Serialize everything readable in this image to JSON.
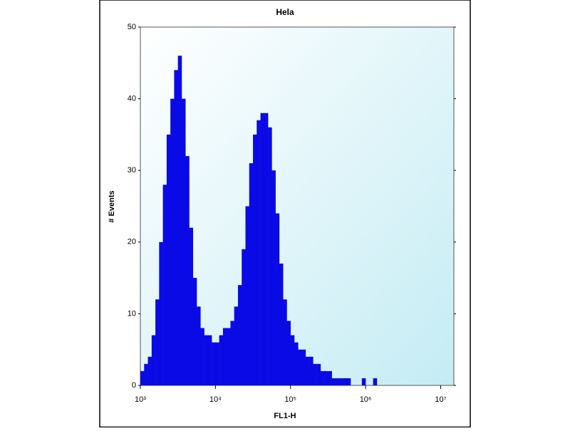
{
  "chart_data": {
    "type": "histogram",
    "title": "Hela",
    "x_label": "FL1-H",
    "y_label": "# Events",
    "log_x": true,
    "color": "#0a0ae6",
    "bins": [
      1000,
      1122,
      1259,
      1413,
      1585,
      1778,
      1995,
      2239,
      2512,
      2818,
      3162,
      3548,
      3981,
      4467,
      5012,
      5623,
      6310,
      7079,
      7943,
      8913,
      10000,
      11220,
      12590,
      14130,
      15850,
      17780,
      19950,
      22390,
      25120,
      28180,
      31620,
      35480,
      39810,
      44670,
      50120,
      56230,
      63100,
      70790,
      79430,
      89130,
      100000,
      112200,
      125900,
      141300,
      158500,
      177800,
      199500,
      223900,
      251200,
      281800,
      316200,
      354800,
      398100,
      446700,
      501200,
      562300,
      631000,
      707900,
      794300,
      891300,
      1000000,
      1122000,
      1259000,
      1413000,
      1585000,
      1778000,
      1995000
    ],
    "values": [
      2,
      3,
      4,
      7,
      12,
      20,
      28,
      35,
      40,
      44,
      46,
      40,
      32,
      22,
      15,
      11,
      8,
      7,
      7,
      6,
      6,
      7,
      8,
      8,
      9,
      11,
      14,
      19,
      25,
      31,
      35,
      37,
      38,
      38,
      36,
      30,
      24,
      17,
      12,
      9,
      7,
      6,
      5,
      5,
      4,
      4,
      3,
      3,
      2,
      2,
      2,
      1,
      1,
      1,
      1,
      1,
      0,
      0,
      0,
      1,
      0,
      0,
      1,
      0,
      0,
      0
    ],
    "xlim": [
      1000,
      15000000
    ],
    "xticks": [
      {
        "value": 1000,
        "label": "10³"
      },
      {
        "value": 10000,
        "label": "10⁴"
      },
      {
        "value": 100000,
        "label": "10⁵"
      },
      {
        "value": 1000000,
        "label": "10⁶"
      },
      {
        "value": 10000000,
        "label": "10⁷"
      }
    ],
    "ylim": [
      0,
      50
    ],
    "yticks": [
      0,
      10,
      20,
      30,
      40,
      50
    ]
  }
}
